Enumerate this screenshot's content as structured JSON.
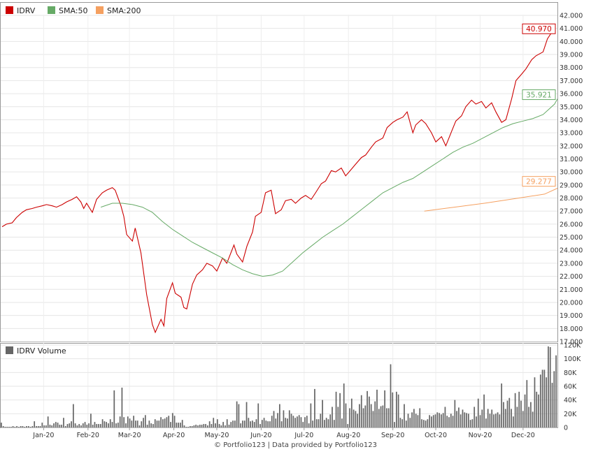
{
  "chart_data": [
    {
      "type": "line",
      "ylim": [
        17,
        42
      ],
      "yticks": [
        "17.000",
        "18.000",
        "19.000",
        "20.000",
        "21.000",
        "22.000",
        "23.000",
        "24.000",
        "25.000",
        "26.000",
        "27.000",
        "28.000",
        "29.000",
        "30.000",
        "31.000",
        "32.000",
        "33.000",
        "34.000",
        "35.000",
        "36.000",
        "37.000",
        "38.000",
        "39.000",
        "40.000",
        "41.000",
        "42.000"
      ],
      "legend_position": "top-left",
      "grid": true,
      "x_labels": [
        "Jan-20",
        "Feb-20",
        "Mar-20",
        "Apr-20",
        "May-20",
        "Jun-20",
        "Jul-20",
        "Aug-20",
        "Sep-20",
        "Oct-20",
        "Nov-20",
        "Dec-20"
      ],
      "series": [
        {
          "name": "IDRV",
          "color": "#cc0000",
          "last_value": "40.970",
          "points": [
            [
              "2019-12-17",
              25.8
            ],
            [
              "2019-12-20",
              26.0
            ],
            [
              "2019-12-24",
              26.1
            ],
            [
              "2019-12-27",
              26.5
            ],
            [
              "2019-12-31",
              26.9
            ],
            [
              "2020-01-03",
              27.1
            ],
            [
              "2020-01-07",
              27.2
            ],
            [
              "2020-01-10",
              27.3
            ],
            [
              "2020-01-14",
              27.4
            ],
            [
              "2020-01-17",
              27.5
            ],
            [
              "2020-01-21",
              27.4
            ],
            [
              "2020-01-24",
              27.3
            ],
            [
              "2020-01-28",
              27.5
            ],
            [
              "2020-01-31",
              27.7
            ],
            [
              "2020-02-04",
              27.9
            ],
            [
              "2020-02-07",
              28.1
            ],
            [
              "2020-02-10",
              27.7
            ],
            [
              "2020-02-12",
              27.2
            ],
            [
              "2020-02-14",
              27.6
            ],
            [
              "2020-02-18",
              26.9
            ],
            [
              "2020-02-21",
              27.9
            ],
            [
              "2020-02-25",
              28.4
            ],
            [
              "2020-02-28",
              28.6
            ],
            [
              "2020-03-03",
              28.8
            ],
            [
              "2020-03-05",
              28.6
            ],
            [
              "2020-03-09",
              27.4
            ],
            [
              "2020-03-11",
              26.6
            ],
            [
              "2020-03-13",
              25.2
            ],
            [
              "2020-03-17",
              24.7
            ],
            [
              "2020-03-19",
              25.7
            ],
            [
              "2020-03-23",
              23.8
            ],
            [
              "2020-03-25",
              22.2
            ],
            [
              "2020-03-27",
              20.6
            ],
            [
              "2020-03-31",
              18.3
            ],
            [
              "2020-04-02",
              17.7
            ],
            [
              "2020-04-06",
              18.7
            ],
            [
              "2020-04-08",
              18.2
            ],
            [
              "2020-04-10",
              20.3
            ],
            [
              "2020-04-14",
              21.5
            ],
            [
              "2020-04-16",
              20.7
            ],
            [
              "2020-04-20",
              20.4
            ],
            [
              "2020-04-22",
              19.6
            ],
            [
              "2020-04-24",
              19.5
            ],
            [
              "2020-04-28",
              21.4
            ],
            [
              "2020-05-01",
              22.1
            ],
            [
              "2020-05-05",
              22.5
            ],
            [
              "2020-05-08",
              23.0
            ],
            [
              "2020-05-12",
              22.8
            ],
            [
              "2020-05-15",
              22.4
            ],
            [
              "2020-05-19",
              23.4
            ],
            [
              "2020-05-22",
              23.0
            ],
            [
              "2020-05-27",
              24.4
            ],
            [
              "2020-05-29",
              23.7
            ],
            [
              "2020-06-02",
              23.1
            ],
            [
              "2020-06-05",
              24.3
            ],
            [
              "2020-06-09",
              25.4
            ],
            [
              "2020-06-11",
              26.6
            ],
            [
              "2020-06-15",
              26.9
            ],
            [
              "2020-06-18",
              28.4
            ],
            [
              "2020-06-22",
              28.6
            ],
            [
              "2020-06-25",
              26.8
            ],
            [
              "2020-06-29",
              27.1
            ],
            [
              "2020-07-02",
              27.8
            ],
            [
              "2020-07-06",
              27.9
            ],
            [
              "2020-07-09",
              27.6
            ],
            [
              "2020-07-13",
              28.0
            ],
            [
              "2020-07-16",
              28.2
            ],
            [
              "2020-07-20",
              27.9
            ],
            [
              "2020-07-23",
              28.4
            ],
            [
              "2020-07-27",
              29.1
            ],
            [
              "2020-07-30",
              29.3
            ],
            [
              "2020-08-03",
              30.1
            ],
            [
              "2020-08-06",
              30.0
            ],
            [
              "2020-08-10",
              30.3
            ],
            [
              "2020-08-13",
              29.7
            ],
            [
              "2020-08-17",
              30.2
            ],
            [
              "2020-08-20",
              30.6
            ],
            [
              "2020-08-24",
              31.1
            ],
            [
              "2020-08-27",
              31.3
            ],
            [
              "2020-08-31",
              31.9
            ],
            [
              "2020-09-03",
              32.3
            ],
            [
              "2020-09-08",
              32.6
            ],
            [
              "2020-09-11",
              33.4
            ],
            [
              "2020-09-15",
              33.8
            ],
            [
              "2020-09-18",
              34.0
            ],
            [
              "2020-09-22",
              34.2
            ],
            [
              "2020-09-25",
              34.6
            ],
            [
              "2020-09-29",
              33.0
            ],
            [
              "2020-10-01",
              33.6
            ],
            [
              "2020-10-05",
              34.0
            ],
            [
              "2020-10-08",
              33.7
            ],
            [
              "2020-10-12",
              33.0
            ],
            [
              "2020-10-15",
              32.3
            ],
            [
              "2020-10-19",
              32.7
            ],
            [
              "2020-10-22",
              32.0
            ],
            [
              "2020-10-26",
              33.1
            ],
            [
              "2020-10-29",
              33.9
            ],
            [
              "2020-11-02",
              34.3
            ],
            [
              "2020-11-05",
              35.0
            ],
            [
              "2020-11-09",
              35.5
            ],
            [
              "2020-11-12",
              35.2
            ],
            [
              "2020-11-16",
              35.4
            ],
            [
              "2020-11-19",
              34.9
            ],
            [
              "2020-11-23",
              35.3
            ],
            [
              "2020-11-26",
              34.6
            ],
            [
              "2020-11-30",
              33.8
            ],
            [
              "2020-12-03",
              34.0
            ],
            [
              "2020-12-07",
              35.6
            ],
            [
              "2020-12-10",
              37.0
            ],
            [
              "2020-12-14",
              37.5
            ],
            [
              "2020-12-17",
              37.9
            ],
            [
              "2020-12-21",
              38.6
            ],
            [
              "2020-12-24",
              38.9
            ],
            [
              "2020-12-29",
              39.2
            ],
            [
              "2021-01-01",
              40.2
            ],
            [
              "2021-01-04",
              40.7
            ],
            [
              "2021-01-06",
              40.97
            ]
          ]
        },
        {
          "name": "SMA:50",
          "color": "#66aa66",
          "last_value": "35.921",
          "points": [
            [
              "2020-02-24",
              27.3
            ],
            [
              "2020-03-03",
              27.6
            ],
            [
              "2020-03-10",
              27.6
            ],
            [
              "2020-03-17",
              27.5
            ],
            [
              "2020-03-24",
              27.3
            ],
            [
              "2020-03-31",
              26.9
            ],
            [
              "2020-04-07",
              26.2
            ],
            [
              "2020-04-14",
              25.6
            ],
            [
              "2020-04-21",
              25.1
            ],
            [
              "2020-04-28",
              24.6
            ],
            [
              "2020-05-05",
              24.2
            ],
            [
              "2020-05-12",
              23.8
            ],
            [
              "2020-05-19",
              23.4
            ],
            [
              "2020-05-26",
              22.9
            ],
            [
              "2020-06-02",
              22.5
            ],
            [
              "2020-06-09",
              22.2
            ],
            [
              "2020-06-16",
              22.0
            ],
            [
              "2020-06-23",
              22.1
            ],
            [
              "2020-06-30",
              22.4
            ],
            [
              "2020-07-07",
              23.1
            ],
            [
              "2020-07-14",
              23.8
            ],
            [
              "2020-07-21",
              24.4
            ],
            [
              "2020-07-28",
              25.0
            ],
            [
              "2020-08-04",
              25.5
            ],
            [
              "2020-08-11",
              26.0
            ],
            [
              "2020-08-18",
              26.6
            ],
            [
              "2020-08-25",
              27.2
            ],
            [
              "2020-09-01",
              27.8
            ],
            [
              "2020-09-08",
              28.4
            ],
            [
              "2020-09-15",
              28.8
            ],
            [
              "2020-09-22",
              29.2
            ],
            [
              "2020-09-29",
              29.5
            ],
            [
              "2020-10-06",
              30.0
            ],
            [
              "2020-10-13",
              30.5
            ],
            [
              "2020-10-20",
              31.0
            ],
            [
              "2020-10-27",
              31.5
            ],
            [
              "2020-11-03",
              31.9
            ],
            [
              "2020-11-10",
              32.2
            ],
            [
              "2020-11-17",
              32.6
            ],
            [
              "2020-11-24",
              33.0
            ],
            [
              "2020-12-01",
              33.4
            ],
            [
              "2020-12-08",
              33.7
            ],
            [
              "2020-12-15",
              33.9
            ],
            [
              "2020-12-22",
              34.1
            ],
            [
              "2020-12-29",
              34.4
            ],
            [
              "2021-01-06",
              35.2
            ],
            [
              "2021-01-08",
              35.6
            ]
          ]
        },
        {
          "name": "SMA:200",
          "color": "#f5a060",
          "last_value": "29.277",
          "points": [
            [
              "2020-10-07",
              27.0
            ],
            [
              "2020-10-28",
              27.3
            ],
            [
              "2020-11-18",
              27.6
            ],
            [
              "2020-12-09",
              27.95
            ],
            [
              "2020-12-30",
              28.3
            ],
            [
              "2021-01-08",
              28.75
            ]
          ]
        }
      ]
    },
    {
      "type": "bar",
      "ylim": [
        0,
        120000
      ],
      "yticks": [
        "0",
        "20K",
        "40K",
        "60K",
        "80K",
        "100K",
        "120K"
      ],
      "legend_position": "top-left",
      "grid": true,
      "series": [
        {
          "name": "IDRV Volume",
          "color": "#666666",
          "values": [
            7,
            2,
            1,
            1,
            1,
            1,
            2,
            1,
            2,
            1,
            2,
            2,
            1,
            2,
            2,
            1,
            2,
            9,
            2,
            2,
            2,
            7,
            3,
            3,
            16,
            4,
            3,
            6,
            8,
            7,
            4,
            4,
            14,
            2,
            5,
            6,
            9,
            34,
            6,
            3,
            5,
            3,
            6,
            8,
            4,
            6,
            20,
            4,
            8,
            5,
            5,
            5,
            12,
            9,
            8,
            6,
            12,
            8,
            54,
            6,
            7,
            16,
            58,
            15,
            6,
            16,
            13,
            10,
            17,
            10,
            10,
            3,
            9,
            14,
            18,
            4,
            10,
            6,
            5,
            12,
            10,
            10,
            15,
            12,
            13,
            15,
            17,
            8,
            21,
            17,
            7,
            7,
            7,
            11,
            3,
            1,
            1,
            2,
            2,
            3,
            4,
            3,
            4,
            4,
            5,
            5,
            3,
            9,
            5,
            14,
            6,
            12,
            5,
            3,
            8,
            3,
            12,
            4,
            8,
            10,
            10,
            38,
            34,
            6,
            10,
            10,
            37,
            14,
            9,
            10,
            8,
            12,
            35,
            5,
            11,
            14,
            10,
            9,
            9,
            17,
            24,
            13,
            21,
            34,
            9,
            25,
            14,
            13,
            25,
            20,
            17,
            14,
            16,
            18,
            15,
            8,
            15,
            17,
            6,
            35,
            10,
            56,
            12,
            12,
            20,
            40,
            11,
            14,
            12,
            19,
            30,
            11,
            52,
            30,
            50,
            13,
            64,
            35,
            5,
            28,
            42,
            26,
            24,
            20,
            34,
            47,
            28,
            32,
            53,
            45,
            34,
            24,
            38,
            55,
            27,
            31,
            32,
            54,
            28,
            28,
            92,
            51,
            8,
            52,
            48,
            14,
            12,
            34,
            10,
            20,
            14,
            22,
            27,
            20,
            18,
            28,
            12,
            11,
            10,
            12,
            18,
            16,
            18,
            19,
            22,
            21,
            19,
            21,
            30,
            17,
            15,
            20,
            17,
            40,
            24,
            29,
            19,
            26,
            22,
            21,
            20,
            11,
            12,
            30,
            16,
            42,
            18,
            26,
            48,
            13,
            27,
            20,
            26,
            19,
            20,
            22,
            19,
            64,
            37,
            27,
            39,
            43,
            27,
            16,
            50,
            30,
            52,
            39,
            24,
            48,
            69,
            30,
            37,
            23,
            73,
            52,
            48,
            77,
            84,
            84,
            73,
            118,
            117,
            65,
            82,
            105
          ]
        }
      ]
    }
  ],
  "footer": "© Portfolio123 | Data provided by Portfolio123"
}
